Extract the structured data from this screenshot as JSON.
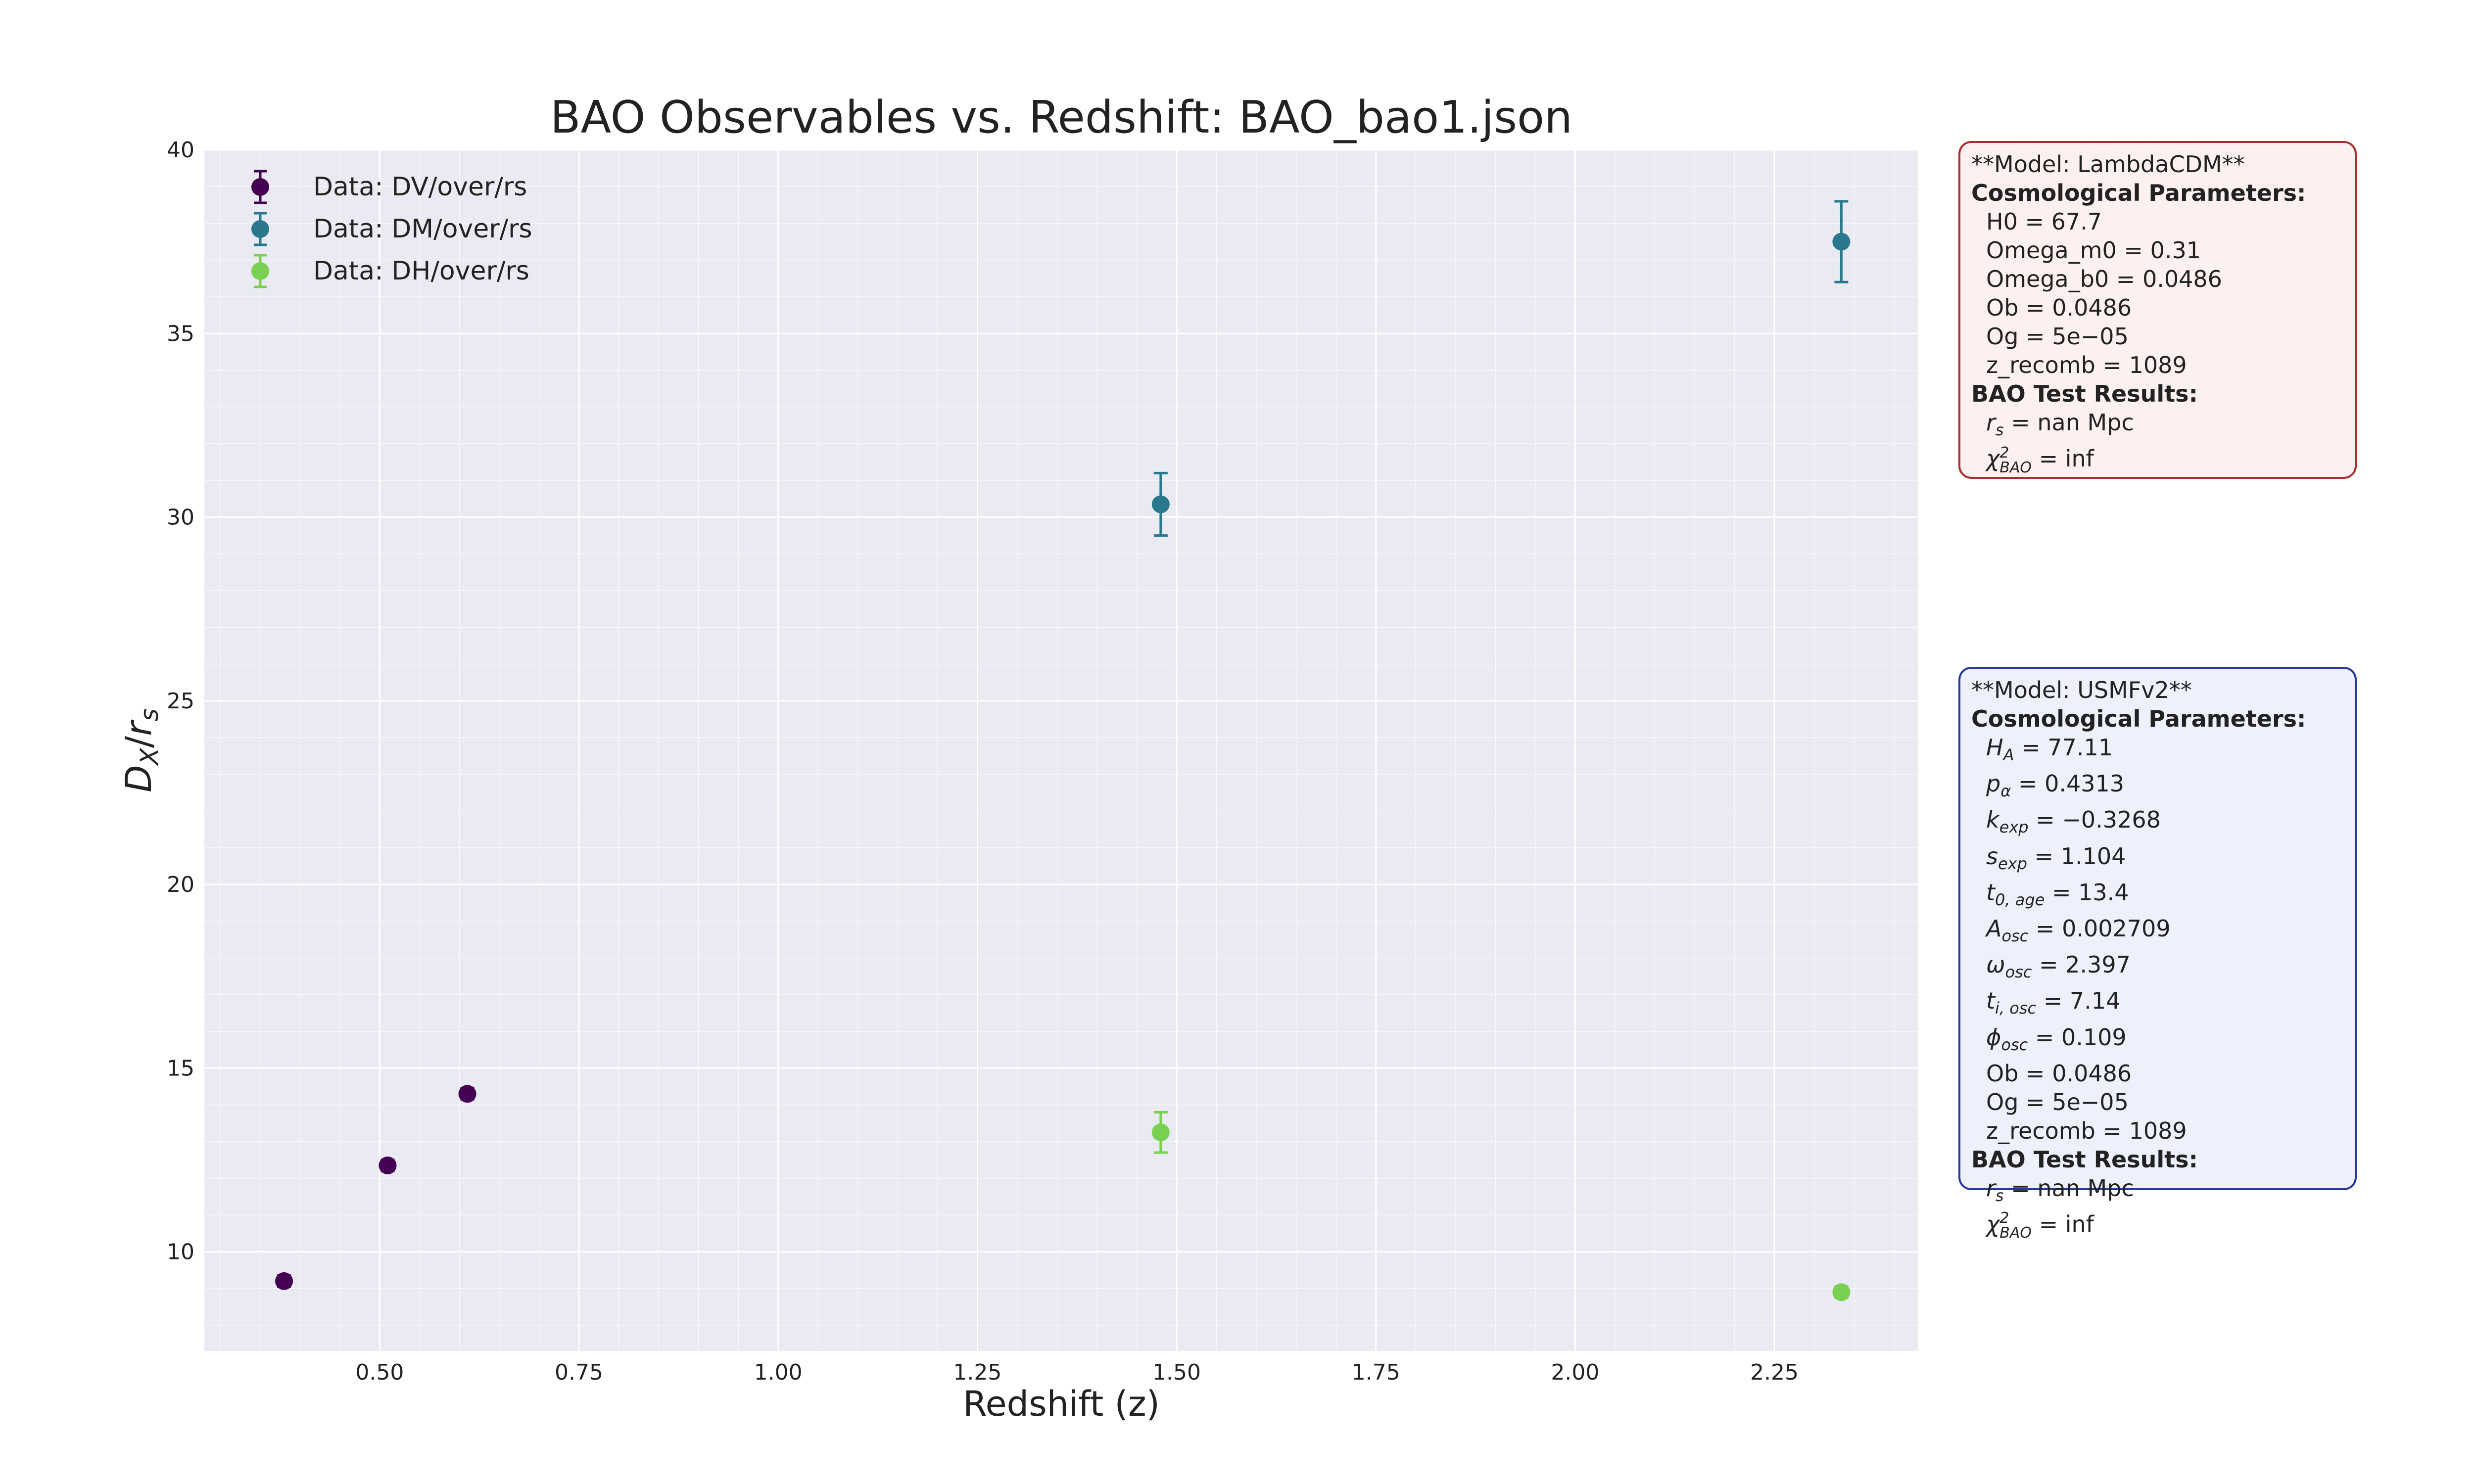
{
  "chart_data": {
    "type": "scatter",
    "title": "BAO Observables vs. Redshift: BAO_bao1.json",
    "xlabel": "Redshift (z)",
    "ylabel_main": "D",
    "ylabel_sub_x": "X",
    "ylabel_sep": "/",
    "ylabel_r": "r",
    "ylabel_sub_s": "s",
    "xlim": [
      0.28,
      2.43
    ],
    "ylim": [
      7.3,
      40.0
    ],
    "xticks": [
      0.5,
      0.75,
      1.0,
      1.25,
      1.5,
      1.75,
      2.0,
      2.25
    ],
    "xtick_labels": [
      "0.50",
      "0.75",
      "1.00",
      "1.25",
      "1.50",
      "1.75",
      "2.00",
      "2.25"
    ],
    "yticks": [
      10,
      15,
      20,
      25,
      30,
      35,
      40
    ],
    "ytick_labels": [
      "10",
      "15",
      "20",
      "25",
      "30",
      "35",
      "40"
    ],
    "grid": true,
    "legend_position": "top-left",
    "series": [
      {
        "name": "Data: DV/over/rs",
        "color": "#440154",
        "points": [
          {
            "x": 0.38,
            "y": 9.2,
            "err": 0.15
          },
          {
            "x": 0.51,
            "y": 12.35,
            "err": 0.15
          },
          {
            "x": 0.61,
            "y": 14.3,
            "err": 0.15
          }
        ]
      },
      {
        "name": "Data: DM/over/rs",
        "color": "#2a788e",
        "points": [
          {
            "x": 1.48,
            "y": 30.35,
            "err": 0.85
          },
          {
            "x": 2.334,
            "y": 37.5,
            "err": 1.1
          }
        ]
      },
      {
        "name": "Data: DH/over/rs",
        "color": "#7ad151",
        "points": [
          {
            "x": 1.48,
            "y": 13.25,
            "err": 0.55
          },
          {
            "x": 2.334,
            "y": 8.9,
            "err": 0.15
          }
        ]
      }
    ]
  },
  "lcdm_box": {
    "header": "**Model: LambdaCDM**",
    "params_title": "Cosmological Parameters:",
    "params": [
      "H0 = 67.7",
      "Omega_m0 = 0.31",
      "Omega_b0 = 0.0486",
      "Ob = 0.0486",
      "Og = 5e−05",
      "z_recomb = 1089"
    ],
    "results_title": "BAO Test Results:",
    "rs_sym": "r",
    "rs_sub": "s",
    "rs_val": " = nan Mpc",
    "chi_sym": "χ",
    "chi_sup": "2",
    "chi_sub": "BAO",
    "chi_val": " = inf"
  },
  "usmf_box": {
    "header": "**Model: USMFv2**",
    "params_title": "Cosmological Parameters:",
    "symbol_params": [
      {
        "sym": "H",
        "sub": "A",
        "val": " = 77.11"
      },
      {
        "sym": "p",
        "sub": "α",
        "val": " = 0.4313"
      },
      {
        "sym": "k",
        "sub": "exp",
        "val": " = −0.3268"
      },
      {
        "sym": "s",
        "sub": "exp",
        "val": " = 1.104"
      },
      {
        "sym": "t",
        "sub": "0, age",
        "val": " = 13.4"
      },
      {
        "sym": "A",
        "sub": "osc",
        "val": " = 0.002709"
      },
      {
        "sym": "ω",
        "sub": "osc",
        "val": " = 2.397"
      },
      {
        "sym": "t",
        "sub": "i, osc",
        "val": " = 7.14"
      },
      {
        "sym": "ϕ",
        "sub": "osc",
        "val": " = 0.109"
      }
    ],
    "plain_params": [
      "Ob = 0.0486",
      "Og = 5e−05",
      "z_recomb = 1089"
    ],
    "results_title": "BAO Test Results:",
    "rs_sym": "r",
    "rs_sub": "s",
    "rs_val": " = nan Mpc",
    "chi_sym": "χ",
    "chi_sup": "2",
    "chi_sub": "BAO",
    "chi_val": " = inf"
  }
}
